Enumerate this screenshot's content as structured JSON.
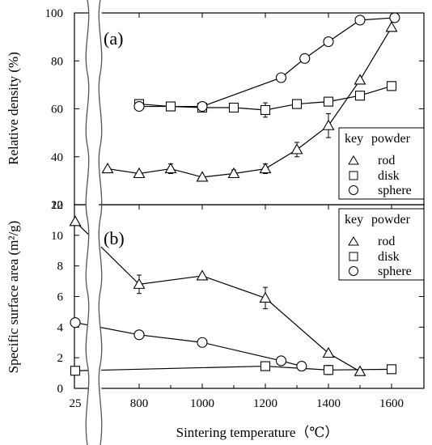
{
  "chart_data": [
    {
      "panel_label": "(a)",
      "type": "line",
      "ylabel": "Relative density (%)",
      "ylim": [
        20,
        100
      ],
      "yticks": [
        "20",
        "40",
        "60",
        "80",
        "100"
      ],
      "legend": {
        "title_key": "key",
        "title_powder": "powder",
        "entries": [
          "rod",
          "disk",
          "sphere"
        ],
        "placement": "right-middle"
      },
      "series": [
        {
          "name": "rod",
          "marker": "triangle",
          "x": [
            700,
            800,
            900,
            1000,
            1100,
            1200,
            1300,
            1400,
            1500,
            1600
          ],
          "y": [
            35,
            33,
            35,
            31.5,
            33,
            35,
            43,
            53,
            72,
            94
          ],
          "err": [
            0,
            0,
            2,
            0,
            1.5,
            2,
            3,
            5,
            0,
            0
          ]
        },
        {
          "name": "disk",
          "marker": "square",
          "x": [
            800,
            900,
            1000,
            1100,
            1200,
            1300,
            1400,
            1500,
            1600
          ],
          "y": [
            62,
            61,
            60.5,
            60.5,
            59.5,
            62,
            63,
            65.5,
            69.5
          ],
          "err": [
            0,
            0,
            0,
            0,
            3,
            0,
            0,
            0,
            0
          ]
        },
        {
          "name": "sphere",
          "marker": "circle",
          "x": [
            800,
            1000,
            1250,
            1325,
            1400,
            1500,
            1610
          ],
          "y": [
            61,
            61,
            73,
            81,
            88,
            97,
            98
          ],
          "err": [
            0,
            0,
            0,
            0,
            0,
            0,
            0
          ]
        }
      ]
    },
    {
      "panel_label": "(b)",
      "type": "line",
      "ylabel": "Specific surface area (m²/g)",
      "ylim": [
        0,
        12
      ],
      "yticks": [
        "0",
        "2",
        "4",
        "6",
        "8",
        "10",
        "12"
      ],
      "legend": {
        "title_key": "key",
        "title_powder": "powder",
        "entries": [
          "rod",
          "disk",
          "sphere"
        ],
        "placement": "top-right"
      },
      "series": [
        {
          "name": "rod",
          "marker": "triangle",
          "x": [
            25,
            800,
            1000,
            1200,
            1400,
            1500
          ],
          "y": [
            10.9,
            6.8,
            7.35,
            5.9,
            2.3,
            1.1
          ],
          "err": [
            0,
            0.6,
            0,
            0.7,
            0,
            0
          ]
        },
        {
          "name": "disk",
          "marker": "square",
          "x": [
            25,
            1200,
            1400,
            1600
          ],
          "y": [
            1.15,
            1.45,
            1.2,
            1.25
          ],
          "err": [
            0,
            0,
            0.3,
            0
          ]
        },
        {
          "name": "sphere",
          "marker": "circle",
          "x": [
            25,
            800,
            1000,
            1250,
            1315
          ],
          "y": [
            4.3,
            3.5,
            3.0,
            1.8,
            1.45
          ],
          "err": [
            0,
            0,
            0,
            0.25,
            0
          ]
        }
      ]
    }
  ],
  "xaxis": {
    "xlabel": "Sintering temperature（℃）",
    "xlim": [
      700,
      1700
    ],
    "xticks": [
      "800",
      "1000",
      "1200",
      "1400",
      "1600"
    ],
    "break_tick": "25"
  }
}
